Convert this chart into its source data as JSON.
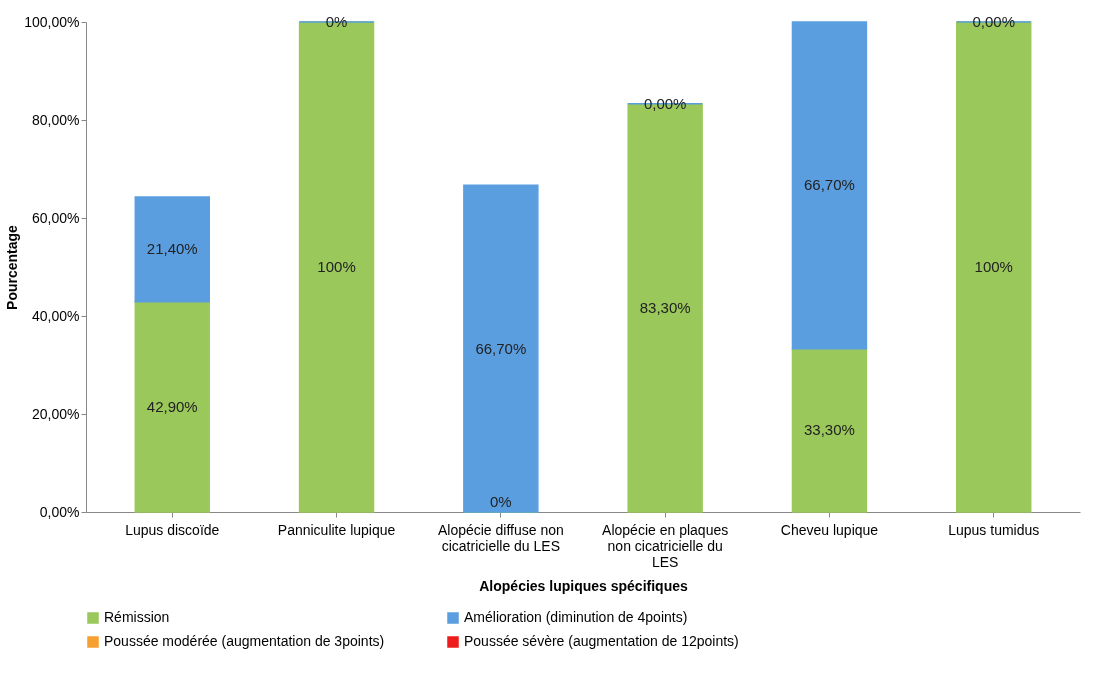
{
  "chart_data": {
    "type": "bar",
    "stacked": true,
    "xlabel": "Alopécies lupiques spécifiques",
    "ylabel": "Pourcentage",
    "categories": [
      "Lupus discoïde",
      "Panniculite lupique",
      "Alopécie diffuse non cicatricielle du LES",
      "Alopécie en plaques non cicatricielle du LES",
      "Cheveu lupique",
      "Lupus tumidus"
    ],
    "series": [
      {
        "name": "Rémission",
        "color": "#9bc85b",
        "values": [
          42.9,
          100,
          0,
          83.3,
          33.3,
          100
        ],
        "value_labels": [
          "42,90%",
          "100%",
          "0%",
          "83,30%",
          "33,30%",
          "100%"
        ]
      },
      {
        "name": "Amélioration (diminution de 4points)",
        "color": "#5a9ee0",
        "values": [
          21.4,
          0,
          66.7,
          0,
          66.7,
          0
        ],
        "value_labels": [
          "21,40%",
          "0%",
          "66,70%",
          "0,00%",
          "66,70%",
          "0,00%"
        ]
      },
      {
        "name": "Poussée modérée (augmentation de 3points)",
        "color": "#f7a032",
        "values": [
          null,
          null,
          null,
          null,
          null,
          null
        ]
      },
      {
        "name": "Poussée sévère (augmentation de 12points)",
        "color": "#ee1c1c",
        "values": [
          null,
          null,
          null,
          null,
          null,
          null
        ]
      }
    ],
    "ylim": [
      0,
      100
    ],
    "yticks": [
      {
        "value": 0,
        "label": "0,00%"
      },
      {
        "value": 20,
        "label": "20,00%"
      },
      {
        "value": 40,
        "label": "40,00%"
      },
      {
        "value": 60,
        "label": "60,00%"
      },
      {
        "value": 80,
        "label": "80,00%"
      },
      {
        "value": 100,
        "label": "100,00%"
      }
    ],
    "grid": false,
    "legend": "bottom"
  }
}
